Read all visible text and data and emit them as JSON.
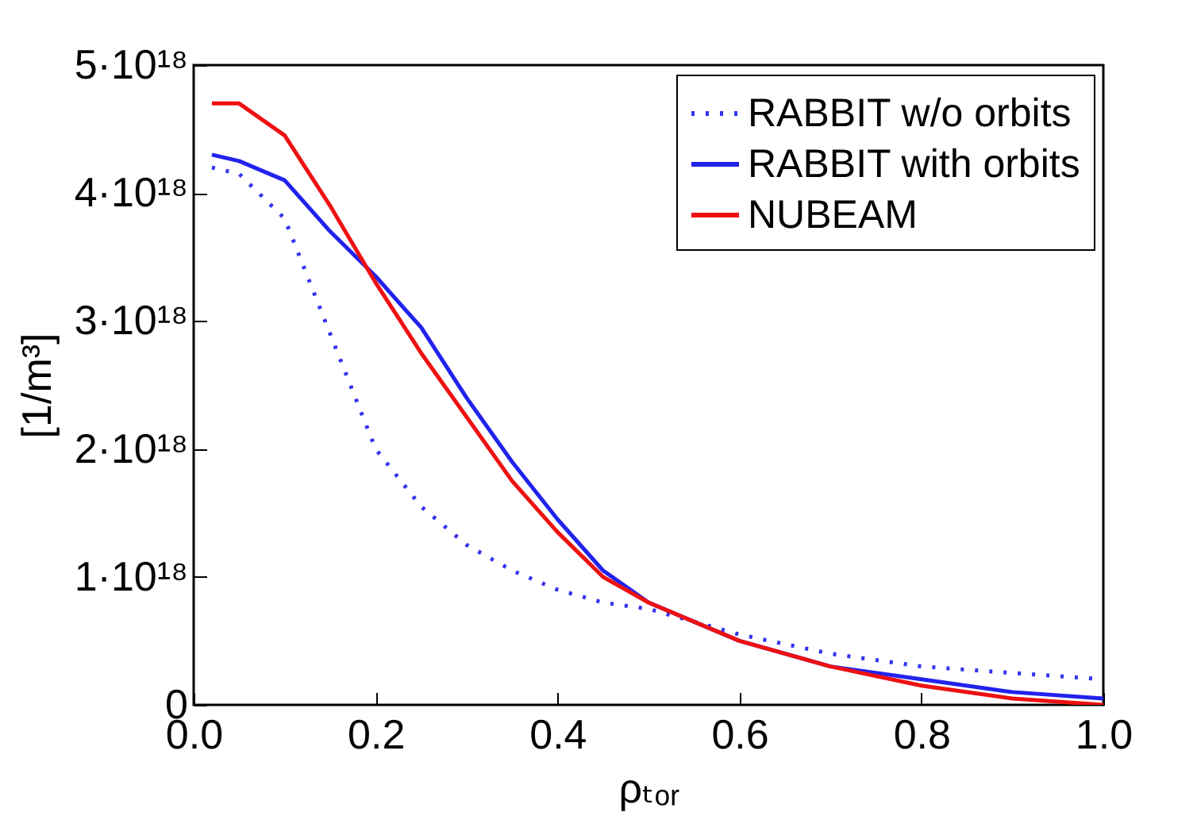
{
  "chart_data": {
    "type": "line",
    "xlabel": "ρₜₒᵣ",
    "ylabel": "[1/m³]",
    "xlim": [
      0,
      1
    ],
    "ylim": [
      0,
      5e+18
    ],
    "xticks": [
      {
        "value": 0,
        "label": "0.0"
      },
      {
        "value": 0.2,
        "label": "0.2"
      },
      {
        "value": 0.4,
        "label": "0.4"
      },
      {
        "value": 0.6,
        "label": "0.6"
      },
      {
        "value": 0.8,
        "label": "0.8"
      },
      {
        "value": 1,
        "label": "1.0"
      }
    ],
    "yticks": [
      {
        "value": 0,
        "label": "0"
      },
      {
        "value": 1e+18,
        "label": "1·10¹⁸"
      },
      {
        "value": 2e+18,
        "label": "2·10¹⁸"
      },
      {
        "value": 3e+18,
        "label": "3·10¹⁸"
      },
      {
        "value": 4e+18,
        "label": "4·10¹⁸"
      },
      {
        "value": 5e+18,
        "label": "5·10¹⁸"
      }
    ],
    "x": [
      0.02,
      0.05,
      0.1,
      0.15,
      0.2,
      0.25,
      0.3,
      0.35,
      0.4,
      0.45,
      0.5,
      0.6,
      0.7,
      0.8,
      0.9,
      1.0
    ],
    "grid": false,
    "legend": "top right",
    "marker": "none",
    "series": [
      {
        "name": "RABBIT w/o orbits",
        "color": "#3333ee",
        "line_style": "dotted",
        "values": [
          4.2e+18,
          4.15e+18,
          3.8e+18,
          2.9e+18,
          2e+18,
          1.55e+18,
          1.25e+18,
          1.05e+18,
          9e+17,
          8e+17,
          7.5e+17,
          5.5e+17,
          4e+17,
          3e+17,
          2.5e+17,
          2e+17
        ]
      },
      {
        "name": "RABBIT with orbits",
        "color": "#2222ee",
        "line_style": "solid",
        "values": [
          4.3e+18,
          4.25e+18,
          4.1e+18,
          3.7e+18,
          3.35e+18,
          2.95e+18,
          2.4e+18,
          1.9e+18,
          1.45e+18,
          1.05e+18,
          8e+17,
          5e+17,
          3e+17,
          2e+17,
          1e+17,
          5e+16
        ]
      },
      {
        "name": "NUBEAM",
        "color": "#ee1111",
        "line_style": "solid",
        "values": [
          4.7e+18,
          4.7e+18,
          4.45e+18,
          3.9e+18,
          3.3e+18,
          2.75e+18,
          2.25e+18,
          1.75e+18,
          1.35e+18,
          1e+18,
          8e+17,
          5e+17,
          3e+17,
          1.5e+17,
          5e+16,
          0
        ]
      }
    ]
  }
}
